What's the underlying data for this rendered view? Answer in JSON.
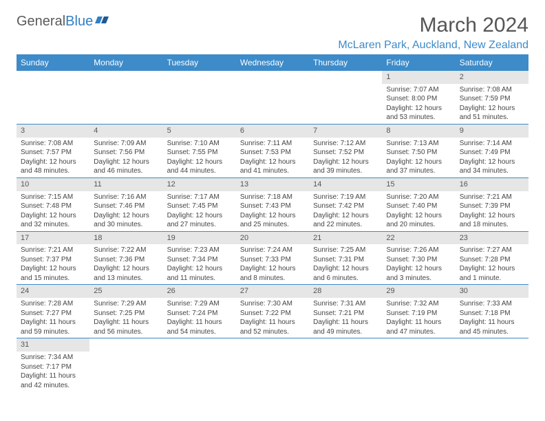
{
  "brand": {
    "text1": "General",
    "text2": "Blue"
  },
  "title": "March 2024",
  "location": "McLaren Park, Auckland, New Zealand",
  "colors": {
    "header_bg": "#3d8bc9",
    "daynum_bg": "#e6e6e6",
    "rule": "#3d8bc9"
  },
  "weekdays": [
    "Sunday",
    "Monday",
    "Tuesday",
    "Wednesday",
    "Thursday",
    "Friday",
    "Saturday"
  ],
  "grid": [
    [
      null,
      null,
      null,
      null,
      null,
      {
        "n": "1",
        "sr": "7:07 AM",
        "ss": "8:00 PM",
        "dl": "12 hours and 53 minutes."
      },
      {
        "n": "2",
        "sr": "7:08 AM",
        "ss": "7:59 PM",
        "dl": "12 hours and 51 minutes."
      }
    ],
    [
      {
        "n": "3",
        "sr": "7:08 AM",
        "ss": "7:57 PM",
        "dl": "12 hours and 48 minutes."
      },
      {
        "n": "4",
        "sr": "7:09 AM",
        "ss": "7:56 PM",
        "dl": "12 hours and 46 minutes."
      },
      {
        "n": "5",
        "sr": "7:10 AM",
        "ss": "7:55 PM",
        "dl": "12 hours and 44 minutes."
      },
      {
        "n": "6",
        "sr": "7:11 AM",
        "ss": "7:53 PM",
        "dl": "12 hours and 41 minutes."
      },
      {
        "n": "7",
        "sr": "7:12 AM",
        "ss": "7:52 PM",
        "dl": "12 hours and 39 minutes."
      },
      {
        "n": "8",
        "sr": "7:13 AM",
        "ss": "7:50 PM",
        "dl": "12 hours and 37 minutes."
      },
      {
        "n": "9",
        "sr": "7:14 AM",
        "ss": "7:49 PM",
        "dl": "12 hours and 34 minutes."
      }
    ],
    [
      {
        "n": "10",
        "sr": "7:15 AM",
        "ss": "7:48 PM",
        "dl": "12 hours and 32 minutes."
      },
      {
        "n": "11",
        "sr": "7:16 AM",
        "ss": "7:46 PM",
        "dl": "12 hours and 30 minutes."
      },
      {
        "n": "12",
        "sr": "7:17 AM",
        "ss": "7:45 PM",
        "dl": "12 hours and 27 minutes."
      },
      {
        "n": "13",
        "sr": "7:18 AM",
        "ss": "7:43 PM",
        "dl": "12 hours and 25 minutes."
      },
      {
        "n": "14",
        "sr": "7:19 AM",
        "ss": "7:42 PM",
        "dl": "12 hours and 22 minutes."
      },
      {
        "n": "15",
        "sr": "7:20 AM",
        "ss": "7:40 PM",
        "dl": "12 hours and 20 minutes."
      },
      {
        "n": "16",
        "sr": "7:21 AM",
        "ss": "7:39 PM",
        "dl": "12 hours and 18 minutes."
      }
    ],
    [
      {
        "n": "17",
        "sr": "7:21 AM",
        "ss": "7:37 PM",
        "dl": "12 hours and 15 minutes."
      },
      {
        "n": "18",
        "sr": "7:22 AM",
        "ss": "7:36 PM",
        "dl": "12 hours and 13 minutes."
      },
      {
        "n": "19",
        "sr": "7:23 AM",
        "ss": "7:34 PM",
        "dl": "12 hours and 11 minutes."
      },
      {
        "n": "20",
        "sr": "7:24 AM",
        "ss": "7:33 PM",
        "dl": "12 hours and 8 minutes."
      },
      {
        "n": "21",
        "sr": "7:25 AM",
        "ss": "7:31 PM",
        "dl": "12 hours and 6 minutes."
      },
      {
        "n": "22",
        "sr": "7:26 AM",
        "ss": "7:30 PM",
        "dl": "12 hours and 3 minutes."
      },
      {
        "n": "23",
        "sr": "7:27 AM",
        "ss": "7:28 PM",
        "dl": "12 hours and 1 minute."
      }
    ],
    [
      {
        "n": "24",
        "sr": "7:28 AM",
        "ss": "7:27 PM",
        "dl": "11 hours and 59 minutes."
      },
      {
        "n": "25",
        "sr": "7:29 AM",
        "ss": "7:25 PM",
        "dl": "11 hours and 56 minutes."
      },
      {
        "n": "26",
        "sr": "7:29 AM",
        "ss": "7:24 PM",
        "dl": "11 hours and 54 minutes."
      },
      {
        "n": "27",
        "sr": "7:30 AM",
        "ss": "7:22 PM",
        "dl": "11 hours and 52 minutes."
      },
      {
        "n": "28",
        "sr": "7:31 AM",
        "ss": "7:21 PM",
        "dl": "11 hours and 49 minutes."
      },
      {
        "n": "29",
        "sr": "7:32 AM",
        "ss": "7:19 PM",
        "dl": "11 hours and 47 minutes."
      },
      {
        "n": "30",
        "sr": "7:33 AM",
        "ss": "7:18 PM",
        "dl": "11 hours and 45 minutes."
      }
    ],
    [
      {
        "n": "31",
        "sr": "7:34 AM",
        "ss": "7:17 PM",
        "dl": "11 hours and 42 minutes."
      },
      null,
      null,
      null,
      null,
      null,
      null
    ]
  ],
  "labels": {
    "sunrise": "Sunrise: ",
    "sunset": "Sunset: ",
    "daylight": "Daylight: "
  }
}
